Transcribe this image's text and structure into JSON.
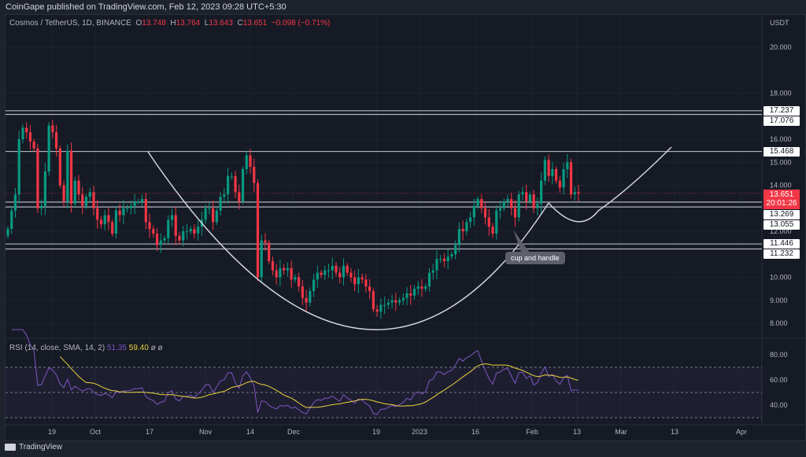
{
  "published": "CoinGape published on TradingView.com, Feb 12, 2023 09:28 UTC+5:30",
  "legend": {
    "symbol": "Cosmos / TetherUS, 1D, BINANCE",
    "o_label": "O",
    "o": "13.748",
    "h_label": "H",
    "h": "13.764",
    "l_label": "L",
    "l": "13.643",
    "c_label": "C",
    "c": "13.651",
    "change": "−0.098 (−0.71%)"
  },
  "rsi_legend": {
    "label": "RSI (14, close, SMA, 14, 2)",
    "rsi": "51.35",
    "sma": "59.40",
    "extra": "ø ø"
  },
  "currency": "USDT",
  "current_price": {
    "price": "13.651",
    "countdown": "20:01:26"
  },
  "annotation": "cup and handle",
  "footer": {
    "brand": "TradingView"
  },
  "colors": {
    "up": "#089981",
    "down": "#f23645",
    "rsi": "#7e57c2",
    "rsi_sma": "#e8d33c",
    "level": "#b2b5be",
    "bg": "#161a25"
  },
  "chart_data": {
    "type": "candlestick",
    "price_axis": {
      "ticks": [
        "20.000",
        "18.000",
        "16.000",
        "15.000",
        "14.000",
        "12.000",
        "10.000",
        "9.000",
        "8.000"
      ],
      "range": [
        8,
        20
      ]
    },
    "time_axis": {
      "ticks": [
        "19",
        "Oct",
        "17",
        "Nov",
        "14",
        "Dec",
        "19",
        "2023",
        "16",
        "Feb",
        "13",
        "Mar",
        "13",
        "Apr"
      ]
    },
    "levels": [
      "17.237",
      "17.076",
      "15.468",
      "13.269",
      "13.055",
      "11.446",
      "11.232"
    ],
    "closes": [
      12.1,
      12.9,
      13.6,
      16.0,
      16.5,
      16.3,
      15.9,
      15.6,
      13.0,
      13.1,
      14.6,
      16.6,
      16.3,
      15.6,
      14.0,
      13.3,
      15.5,
      13.2,
      14.2,
      13.6,
      13.1,
      13.5,
      13.7,
      13.0,
      12.5,
      12.3,
      12.7,
      12.4,
      11.9,
      12.9,
      12.7,
      13.0,
      13.0,
      13.1,
      13.3,
      13.3,
      13.4,
      12.4,
      12.1,
      11.9,
      11.4,
      11.6,
      11.7,
      12.5,
      12.7,
      11.8,
      11.6,
      12.0,
      12.0,
      12.1,
      11.9,
      12.2,
      12.5,
      13.0,
      13.0,
      12.4,
      12.9,
      13.5,
      13.6,
      14.4,
      14.4,
      13.7,
      13.3,
      14.7,
      15.3,
      14.8,
      14.1,
      10.0,
      11.6,
      11.5,
      10.7,
      10.3,
      10.0,
      10.4,
      10.3,
      10.4,
      9.9,
      10.0,
      9.6,
      9.1,
      8.9,
      9.4,
      9.9,
      10.2,
      10.1,
      10.3,
      10.3,
      10.5,
      10.2,
      10.0,
      10.5,
      10.2,
      10.0,
      9.7,
      10.0,
      9.9,
      9.6,
      9.4,
      8.6,
      8.5,
      8.8,
      8.8,
      8.9,
      9.0,
      8.9,
      9.0,
      9.1,
      9.3,
      9.2,
      9.5,
      9.6,
      9.5,
      9.6,
      10.2,
      10.3,
      10.8,
      10.8,
      10.7,
      10.9,
      11.0,
      11.4,
      12.1,
      12.0,
      12.4,
      12.6,
      13.1,
      13.4,
      13.0,
      12.6,
      12.2,
      11.9,
      12.9,
      13.0,
      13.3,
      13.4,
      13.0,
      12.6,
      13.6,
      13.7,
      13.3,
      13.6,
      13.0,
      13.2,
      14.2,
      15.1,
      14.4,
      14.7,
      14.2,
      13.9,
      14.7,
      15.0,
      13.6,
      13.7,
      13.65
    ],
    "rsi": {
      "ticks": [
        "80.00",
        "60.00",
        "40.00"
      ],
      "upper": 70,
      "lower": 30,
      "period": 14,
      "sma": 14
    }
  }
}
